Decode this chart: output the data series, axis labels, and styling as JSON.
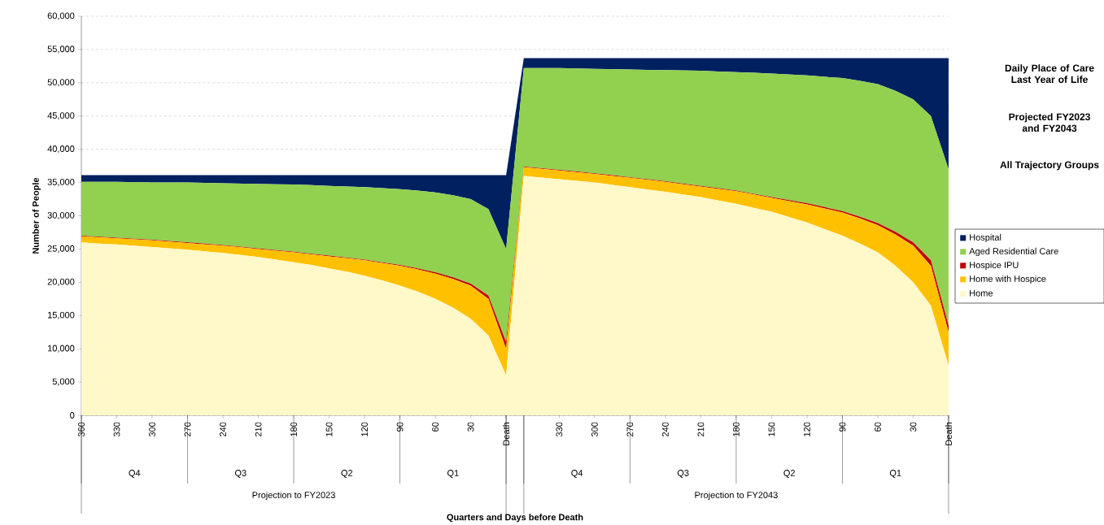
{
  "chart_data": {
    "type": "area",
    "stacked": true,
    "title": "Daily Place of Care Last Year of Life",
    "subtitle": "Projected FY2023 and FY2043",
    "ylabel": "Number of People",
    "annotations": [
      "Q4",
      "Q3",
      "Q2",
      "Q1",
      "Q4",
      "Q3",
      "Q2",
      "Q1",
      "Projection to FY2023",
      "Projection to FY2043",
      "All Trajectory Groups",
      "Quarters and Days before Death"
    ],
    "categories": [
      "360",
      null,
      "330",
      null,
      "300",
      null,
      "270",
      null,
      "240",
      null,
      "210",
      null,
      "180",
      null,
      "150",
      null,
      "120",
      null,
      "90",
      null,
      "60",
      null,
      "30",
      null,
      "Death",
      null,
      null,
      "330",
      null,
      "300",
      null,
      "270",
      null,
      "240",
      null,
      "210",
      null,
      "180",
      null,
      "150",
      null,
      "120",
      null,
      "90",
      null,
      "60",
      null,
      "30",
      null,
      "Death"
    ],
    "series": [
      {
        "name": "Home",
        "color": "#fff8c8",
        "values": [
          26000,
          25800,
          25700,
          25500,
          25300,
          25100,
          24900,
          24650,
          24400,
          24100,
          23800,
          23400,
          23000,
          22600,
          22100,
          21600,
          21000,
          20300,
          19500,
          18600,
          17500,
          16200,
          14500,
          12000,
          6000,
          36000,
          35750,
          35500,
          35250,
          35000,
          34650,
          34300,
          33950,
          33600,
          33200,
          32800,
          32300,
          31800,
          31200,
          30600,
          29800,
          29000,
          28000,
          27000,
          25800,
          24500,
          22500,
          20000,
          16500,
          7500
        ]
      },
      {
        "name": "Home with Hospice",
        "color": "#ffc000",
        "values": [
          900,
          950,
          900,
          950,
          1000,
          1000,
          1000,
          1050,
          1100,
          1150,
          1200,
          1350,
          1500,
          1600,
          1800,
          2000,
          2300,
          2600,
          3000,
          3350,
          3800,
          4300,
          5000,
          5500,
          4000,
          1300,
          1300,
          1300,
          1300,
          1300,
          1350,
          1400,
          1450,
          1500,
          1550,
          1600,
          1750,
          1900,
          2000,
          2100,
          2400,
          2700,
          3100,
          3500,
          3800,
          4100,
          4700,
          5500,
          6000,
          5000
        ]
      },
      {
        "name": "Hospice IPU",
        "color": "#c00000",
        "values": [
          100,
          100,
          100,
          100,
          100,
          100,
          100,
          100,
          100,
          100,
          100,
          100,
          100,
          100,
          100,
          100,
          100,
          100,
          100,
          150,
          200,
          250,
          300,
          500,
          1000,
          100,
          100,
          100,
          100,
          100,
          100,
          100,
          100,
          100,
          100,
          100,
          100,
          100,
          100,
          100,
          150,
          200,
          200,
          200,
          250,
          300,
          400,
          500,
          800,
          1000
        ]
      },
      {
        "name": "Aged Residential Care",
        "color": "#92d050",
        "values": [
          8100,
          8250,
          8400,
          8500,
          8600,
          8800,
          9000,
          9150,
          9300,
          9500,
          9700,
          9900,
          10100,
          10300,
          10500,
          10700,
          10900,
          11150,
          11400,
          11700,
          12000,
          12350,
          12700,
          13000,
          14000,
          14800,
          15050,
          15300,
          15500,
          15700,
          15950,
          16200,
          16450,
          16700,
          17000,
          17300,
          17550,
          17800,
          18200,
          18600,
          18900,
          19200,
          19600,
          20000,
          20450,
          20900,
          21200,
          21500,
          21700,
          23500
        ]
      },
      {
        "name": "Hospital",
        "color": "#002060",
        "values": [
          1000,
          1000,
          1000,
          1050,
          1100,
          1100,
          1100,
          1150,
          1200,
          1250,
          1300,
          1350,
          1400,
          1500,
          1600,
          1700,
          1800,
          1950,
          2100,
          2300,
          2600,
          3000,
          3600,
          5100,
          11100,
          1500,
          1500,
          1500,
          1550,
          1600,
          1650,
          1700,
          1750,
          1800,
          1850,
          1900,
          2000,
          2100,
          2200,
          2300,
          2450,
          2600,
          2800,
          3000,
          3400,
          3900,
          4900,
          6200,
          8700,
          16700
        ]
      }
    ],
    "ylim": [
      0,
      60000
    ],
    "yticks": [
      0,
      {
        "value": 5000,
        "label": "5,000"
      },
      {
        "value": 10000,
        "label": "10,000"
      },
      {
        "value": 15000,
        "label": "15,000"
      },
      {
        "value": 20000,
        "label": "20,000"
      },
      {
        "value": 25000,
        "label": "25,000"
      },
      {
        "value": 30000,
        "label": "30,000"
      },
      {
        "value": 35000,
        "label": "35,000"
      },
      {
        "value": 40000,
        "label": "40,000"
      },
      {
        "value": 45000,
        "label": "45,000"
      },
      {
        "value": 50000,
        "label": "50,000"
      },
      {
        "value": 55000,
        "label": "55,000"
      },
      {
        "value": 60000,
        "label": "60,000"
      }
    ],
    "grid": "y",
    "legend": "right"
  }
}
